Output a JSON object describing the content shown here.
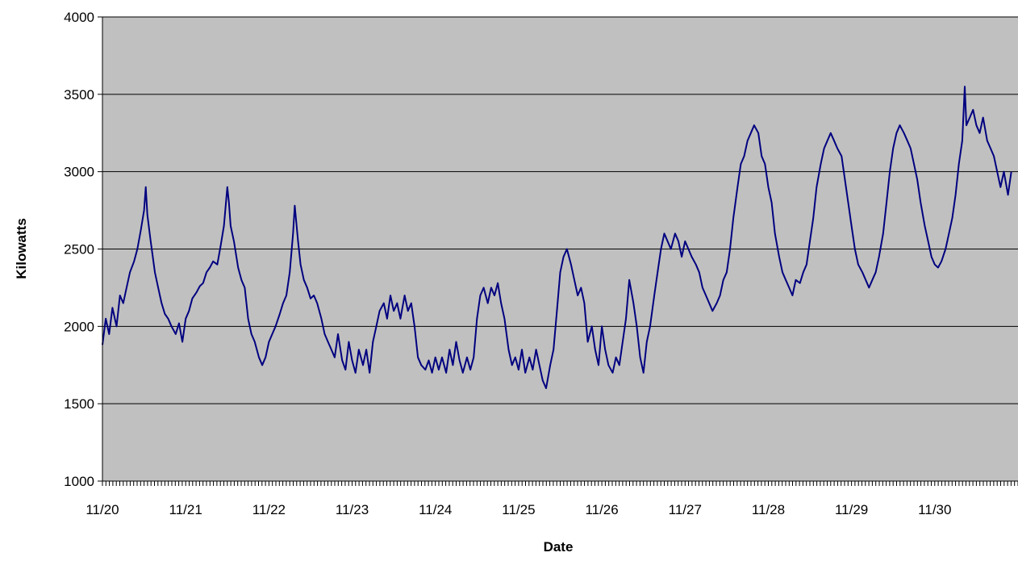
{
  "colors": {
    "plot_background": "#c0c0c0",
    "gridline": "#000000",
    "series_line": "#000080",
    "page_background": "#ffffff"
  },
  "chart_data": {
    "type": "line",
    "title": "",
    "xlabel": "Date",
    "ylabel": "Kilowatts",
    "x_tick_labels": [
      "11/20",
      "11/21",
      "11/22",
      "11/23",
      "11/24",
      "11/25",
      "11/26",
      "11/27",
      "11/28",
      "11/29",
      "11/30"
    ],
    "y_ticks": [
      1000,
      1500,
      2000,
      2500,
      3000,
      3500,
      4000
    ],
    "xlim": [
      "11/20",
      "12/01"
    ],
    "ylim": [
      1000,
      4000
    ],
    "grid": "horizontal",
    "legend": "none",
    "series": [
      {
        "x_unit": "days after 11/20 00:00",
        "samples": [
          [
            0.0,
            1880
          ],
          [
            0.04,
            2050
          ],
          [
            0.08,
            1950
          ],
          [
            0.12,
            2120
          ],
          [
            0.17,
            2000
          ],
          [
            0.21,
            2200
          ],
          [
            0.25,
            2150
          ],
          [
            0.29,
            2250
          ],
          [
            0.33,
            2350
          ],
          [
            0.38,
            2420
          ],
          [
            0.42,
            2500
          ],
          [
            0.46,
            2620
          ],
          [
            0.5,
            2750
          ],
          [
            0.52,
            2900
          ],
          [
            0.54,
            2720
          ],
          [
            0.58,
            2550
          ],
          [
            0.63,
            2350
          ],
          [
            0.67,
            2250
          ],
          [
            0.71,
            2150
          ],
          [
            0.75,
            2080
          ],
          [
            0.79,
            2050
          ],
          [
            0.83,
            2000
          ],
          [
            0.88,
            1950
          ],
          [
            0.92,
            2020
          ],
          [
            0.96,
            1900
          ],
          [
            1.0,
            2050
          ],
          [
            1.04,
            2100
          ],
          [
            1.08,
            2180
          ],
          [
            1.13,
            2220
          ],
          [
            1.17,
            2260
          ],
          [
            1.21,
            2280
          ],
          [
            1.25,
            2350
          ],
          [
            1.29,
            2380
          ],
          [
            1.33,
            2420
          ],
          [
            1.38,
            2400
          ],
          [
            1.42,
            2520
          ],
          [
            1.46,
            2650
          ],
          [
            1.5,
            2900
          ],
          [
            1.52,
            2800
          ],
          [
            1.54,
            2650
          ],
          [
            1.58,
            2550
          ],
          [
            1.63,
            2380
          ],
          [
            1.67,
            2300
          ],
          [
            1.71,
            2250
          ],
          [
            1.75,
            2050
          ],
          [
            1.79,
            1950
          ],
          [
            1.83,
            1900
          ],
          [
            1.88,
            1800
          ],
          [
            1.92,
            1750
          ],
          [
            1.96,
            1800
          ],
          [
            2.0,
            1900
          ],
          [
            2.04,
            1950
          ],
          [
            2.08,
            2000
          ],
          [
            2.13,
            2080
          ],
          [
            2.17,
            2150
          ],
          [
            2.21,
            2200
          ],
          [
            2.25,
            2350
          ],
          [
            2.29,
            2600
          ],
          [
            2.31,
            2780
          ],
          [
            2.35,
            2550
          ],
          [
            2.38,
            2400
          ],
          [
            2.42,
            2300
          ],
          [
            2.46,
            2250
          ],
          [
            2.5,
            2180
          ],
          [
            2.54,
            2200
          ],
          [
            2.58,
            2150
          ],
          [
            2.63,
            2050
          ],
          [
            2.67,
            1950
          ],
          [
            2.71,
            1900
          ],
          [
            2.75,
            1850
          ],
          [
            2.79,
            1800
          ],
          [
            2.83,
            1950
          ],
          [
            2.88,
            1780
          ],
          [
            2.92,
            1720
          ],
          [
            2.96,
            1900
          ],
          [
            3.0,
            1780
          ],
          [
            3.04,
            1700
          ],
          [
            3.08,
            1850
          ],
          [
            3.13,
            1750
          ],
          [
            3.17,
            1850
          ],
          [
            3.21,
            1700
          ],
          [
            3.25,
            1900
          ],
          [
            3.29,
            2000
          ],
          [
            3.33,
            2100
          ],
          [
            3.38,
            2150
          ],
          [
            3.42,
            2050
          ],
          [
            3.46,
            2200
          ],
          [
            3.5,
            2100
          ],
          [
            3.54,
            2150
          ],
          [
            3.58,
            2050
          ],
          [
            3.63,
            2200
          ],
          [
            3.67,
            2100
          ],
          [
            3.71,
            2150
          ],
          [
            3.75,
            2000
          ],
          [
            3.79,
            1800
          ],
          [
            3.83,
            1750
          ],
          [
            3.88,
            1720
          ],
          [
            3.92,
            1780
          ],
          [
            3.96,
            1700
          ],
          [
            4.0,
            1800
          ],
          [
            4.04,
            1720
          ],
          [
            4.08,
            1800
          ],
          [
            4.13,
            1700
          ],
          [
            4.17,
            1850
          ],
          [
            4.21,
            1750
          ],
          [
            4.25,
            1900
          ],
          [
            4.29,
            1780
          ],
          [
            4.33,
            1700
          ],
          [
            4.38,
            1800
          ],
          [
            4.42,
            1720
          ],
          [
            4.46,
            1800
          ],
          [
            4.5,
            2050
          ],
          [
            4.54,
            2200
          ],
          [
            4.58,
            2250
          ],
          [
            4.63,
            2150
          ],
          [
            4.67,
            2250
          ],
          [
            4.71,
            2200
          ],
          [
            4.75,
            2280
          ],
          [
            4.79,
            2150
          ],
          [
            4.83,
            2050
          ],
          [
            4.88,
            1850
          ],
          [
            4.92,
            1750
          ],
          [
            4.96,
            1800
          ],
          [
            5.0,
            1720
          ],
          [
            5.04,
            1850
          ],
          [
            5.08,
            1700
          ],
          [
            5.13,
            1800
          ],
          [
            5.17,
            1720
          ],
          [
            5.21,
            1850
          ],
          [
            5.25,
            1750
          ],
          [
            5.29,
            1650
          ],
          [
            5.33,
            1600
          ],
          [
            5.38,
            1750
          ],
          [
            5.42,
            1850
          ],
          [
            5.46,
            2100
          ],
          [
            5.5,
            2350
          ],
          [
            5.54,
            2450
          ],
          [
            5.58,
            2500
          ],
          [
            5.63,
            2400
          ],
          [
            5.67,
            2300
          ],
          [
            5.71,
            2200
          ],
          [
            5.75,
            2250
          ],
          [
            5.79,
            2150
          ],
          [
            5.83,
            1900
          ],
          [
            5.88,
            2000
          ],
          [
            5.92,
            1850
          ],
          [
            5.96,
            1750
          ],
          [
            6.0,
            2000
          ],
          [
            6.04,
            1850
          ],
          [
            6.08,
            1750
          ],
          [
            6.13,
            1700
          ],
          [
            6.17,
            1800
          ],
          [
            6.21,
            1750
          ],
          [
            6.25,
            1900
          ],
          [
            6.29,
            2050
          ],
          [
            6.33,
            2300
          ],
          [
            6.38,
            2150
          ],
          [
            6.42,
            2000
          ],
          [
            6.46,
            1800
          ],
          [
            6.5,
            1700
          ],
          [
            6.54,
            1900
          ],
          [
            6.58,
            2000
          ],
          [
            6.63,
            2200
          ],
          [
            6.67,
            2350
          ],
          [
            6.71,
            2500
          ],
          [
            6.75,
            2600
          ],
          [
            6.79,
            2550
          ],
          [
            6.83,
            2500
          ],
          [
            6.88,
            2600
          ],
          [
            6.92,
            2550
          ],
          [
            6.96,
            2450
          ],
          [
            7.0,
            2550
          ],
          [
            7.04,
            2500
          ],
          [
            7.08,
            2450
          ],
          [
            7.13,
            2400
          ],
          [
            7.17,
            2350
          ],
          [
            7.21,
            2250
          ],
          [
            7.25,
            2200
          ],
          [
            7.29,
            2150
          ],
          [
            7.33,
            2100
          ],
          [
            7.38,
            2150
          ],
          [
            7.42,
            2200
          ],
          [
            7.46,
            2300
          ],
          [
            7.5,
            2350
          ],
          [
            7.54,
            2500
          ],
          [
            7.58,
            2700
          ],
          [
            7.63,
            2900
          ],
          [
            7.67,
            3050
          ],
          [
            7.71,
            3100
          ],
          [
            7.75,
            3200
          ],
          [
            7.79,
            3250
          ],
          [
            7.83,
            3300
          ],
          [
            7.88,
            3250
          ],
          [
            7.92,
            3100
          ],
          [
            7.96,
            3050
          ],
          [
            8.0,
            2900
          ],
          [
            8.04,
            2800
          ],
          [
            8.08,
            2600
          ],
          [
            8.13,
            2450
          ],
          [
            8.17,
            2350
          ],
          [
            8.21,
            2300
          ],
          [
            8.25,
            2250
          ],
          [
            8.29,
            2200
          ],
          [
            8.33,
            2300
          ],
          [
            8.38,
            2280
          ],
          [
            8.42,
            2350
          ],
          [
            8.46,
            2400
          ],
          [
            8.5,
            2550
          ],
          [
            8.54,
            2700
          ],
          [
            8.58,
            2900
          ],
          [
            8.63,
            3050
          ],
          [
            8.67,
            3150
          ],
          [
            8.71,
            3200
          ],
          [
            8.75,
            3250
          ],
          [
            8.79,
            3200
          ],
          [
            8.83,
            3150
          ],
          [
            8.88,
            3100
          ],
          [
            8.92,
            2950
          ],
          [
            8.96,
            2800
          ],
          [
            9.0,
            2650
          ],
          [
            9.04,
            2500
          ],
          [
            9.08,
            2400
          ],
          [
            9.13,
            2350
          ],
          [
            9.17,
            2300
          ],
          [
            9.21,
            2250
          ],
          [
            9.25,
            2300
          ],
          [
            9.29,
            2350
          ],
          [
            9.33,
            2450
          ],
          [
            9.38,
            2600
          ],
          [
            9.42,
            2800
          ],
          [
            9.46,
            3000
          ],
          [
            9.5,
            3150
          ],
          [
            9.54,
            3250
          ],
          [
            9.58,
            3300
          ],
          [
            9.63,
            3250
          ],
          [
            9.67,
            3200
          ],
          [
            9.71,
            3150
          ],
          [
            9.75,
            3050
          ],
          [
            9.79,
            2950
          ],
          [
            9.83,
            2800
          ],
          [
            9.88,
            2650
          ],
          [
            9.92,
            2550
          ],
          [
            9.96,
            2450
          ],
          [
            10.0,
            2400
          ],
          [
            10.04,
            2380
          ],
          [
            10.08,
            2420
          ],
          [
            10.13,
            2500
          ],
          [
            10.17,
            2600
          ],
          [
            10.21,
            2700
          ],
          [
            10.25,
            2850
          ],
          [
            10.29,
            3050
          ],
          [
            10.33,
            3200
          ],
          [
            10.36,
            3550
          ],
          [
            10.38,
            3300
          ],
          [
            10.42,
            3350
          ],
          [
            10.46,
            3400
          ],
          [
            10.5,
            3300
          ],
          [
            10.54,
            3250
          ],
          [
            10.58,
            3350
          ],
          [
            10.63,
            3200
          ],
          [
            10.67,
            3150
          ],
          [
            10.71,
            3100
          ],
          [
            10.75,
            3000
          ],
          [
            10.79,
            2900
          ],
          [
            10.83,
            3000
          ],
          [
            10.88,
            2850
          ],
          [
            10.92,
            3000
          ]
        ]
      }
    ]
  }
}
